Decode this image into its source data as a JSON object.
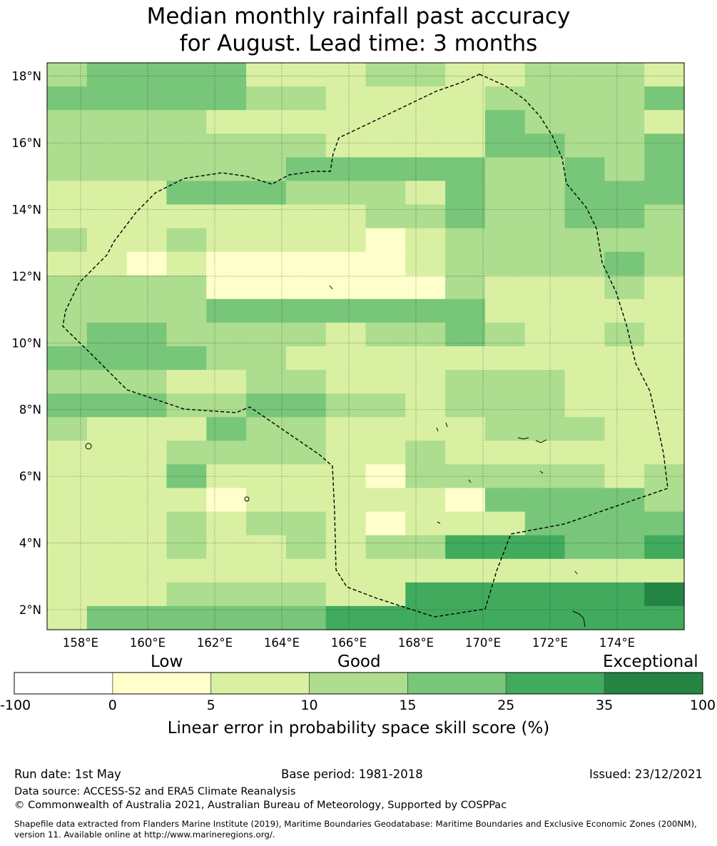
{
  "title_line1": "Median monthly rainfall past accuracy",
  "title_line2": "for August. Lead time: 3 months",
  "map": {
    "lat_range": [
      1.4,
      18.4
    ],
    "lon_range": [
      157.0,
      176.0
    ],
    "lat_ticks": [
      "2°N",
      "4°N",
      "6°N",
      "8°N",
      "10°N",
      "12°N",
      "14°N",
      "16°N",
      "18°N"
    ],
    "lon_ticks": [
      "158°E",
      "160°E",
      "162°E",
      "164°E",
      "166°E",
      "168°E",
      "170°E",
      "172°E",
      "174°E"
    ],
    "grid_lines": true,
    "boundary": "dashed EEZ outline"
  },
  "legend": {
    "categories": [
      "Low",
      "Good",
      "Exceptional"
    ],
    "boundaries": [
      "-100",
      "0",
      "5",
      "10",
      "15",
      "25",
      "35",
      "100"
    ],
    "colors": [
      "#ffffff",
      "#ffffcc",
      "#d9f0a3",
      "#addd8e",
      "#78c679",
      "#41ab5d",
      "#238443"
    ],
    "label": "Linear error in probability space skill score (%)"
  },
  "footer": {
    "run_date": "Run date: 1st May",
    "base_period": "Base period: 1981-2018",
    "issued": "Issued: 23/12/2021",
    "data_source": "Data source: ACCESS-S2 and ERA5 Climate Reanalysis",
    "copyright": "© Commonwealth of Australia 2021, Australian Bureau of Meteorology, Supported by COSPPac",
    "shapefile_line1": "Shapefile data extracted from Flanders Marine Institute (2019), Maritime Boundaries Geodatabase: Maritime Boundaries and Exclusive Economic Zones (200NM),",
    "shapefile_line2": "version 11. Available online at http://www.marineregions.org/."
  }
}
